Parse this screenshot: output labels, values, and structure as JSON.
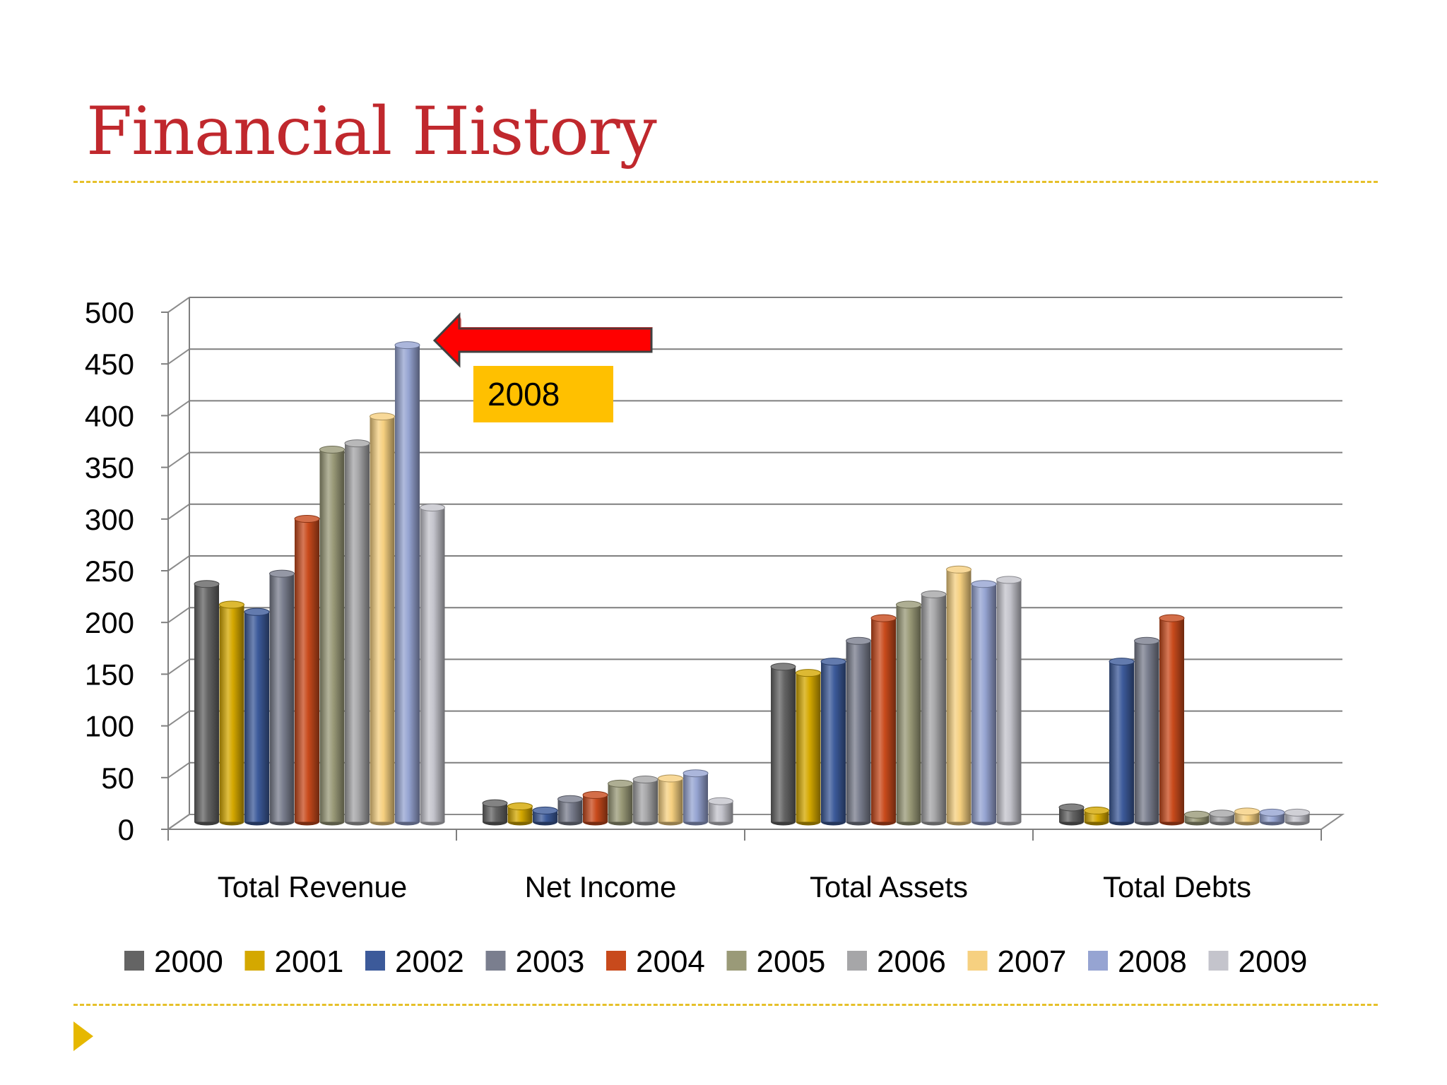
{
  "slide": {
    "title": "Financial History"
  },
  "annotation": {
    "label": "2008",
    "arrow_color": "#ff0000",
    "box_color": "#ffc000"
  },
  "colors": {
    "title": "#c0282d",
    "divider": "#e6c02a",
    "bullet": "#e6b800"
  },
  "chart_data": {
    "type": "bar",
    "style": "3d clustered columns",
    "categories": [
      "Total Revenue",
      "Net Income",
      "Total Assets",
      "Total Debts"
    ],
    "ylim": [
      0,
      500
    ],
    "yticks": [
      0,
      50,
      100,
      150,
      200,
      250,
      300,
      350,
      400,
      450,
      500
    ],
    "grid": true,
    "legend": "bottom",
    "series": [
      {
        "name": "2000",
        "color": "#646464",
        "values": [
          230,
          18,
          150,
          14
        ]
      },
      {
        "name": "2001",
        "color": "#d4a800",
        "values": [
          210,
          15,
          144,
          11
        ]
      },
      {
        "name": "2002",
        "color": "#3c5a9a",
        "values": [
          203,
          11,
          155,
          155
        ]
      },
      {
        "name": "2003",
        "color": "#7a7e8e",
        "values": [
          240,
          22,
          175,
          175
        ]
      },
      {
        "name": "2004",
        "color": "#c84a1c",
        "values": [
          293,
          26,
          197,
          197
        ]
      },
      {
        "name": "2005",
        "color": "#9a9a78",
        "values": [
          360,
          37,
          210,
          7
        ]
      },
      {
        "name": "2006",
        "color": "#a6a6a8",
        "values": [
          366,
          41,
          220,
          8
        ]
      },
      {
        "name": "2007",
        "color": "#f6d080",
        "values": [
          392,
          42,
          244,
          10
        ]
      },
      {
        "name": "2008",
        "color": "#96a4d2",
        "values": [
          461,
          47,
          230,
          9
        ]
      },
      {
        "name": "2009",
        "color": "#c4c4cc",
        "values": [
          304,
          20,
          234,
          9
        ]
      }
    ]
  }
}
